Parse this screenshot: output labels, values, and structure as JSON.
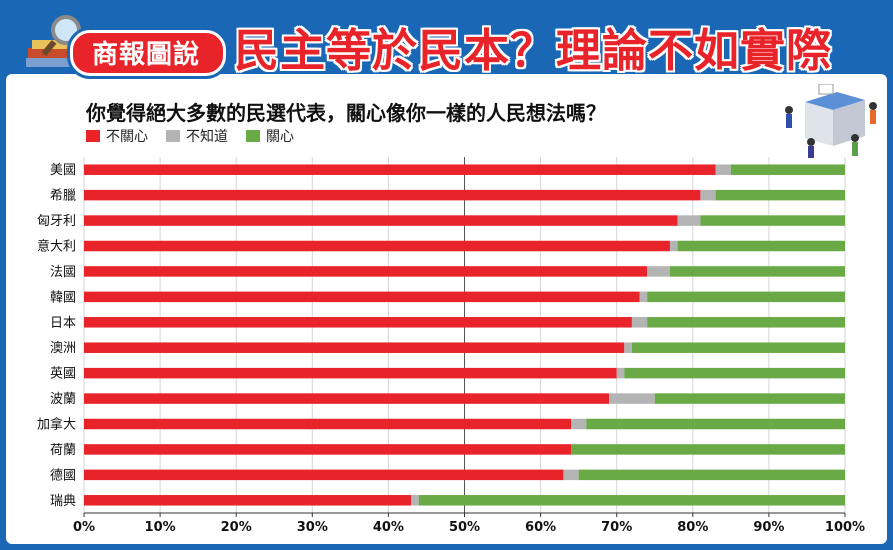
{
  "header": {
    "badge": "商報圖說",
    "headline": "民主等於民本？理論不如實際"
  },
  "chart_data": {
    "type": "bar",
    "orientation": "horizontal",
    "stacked": true,
    "title": "你覺得絕大多數的民選代表，關心像你一樣的人民想法嗎？",
    "categories": [
      "美國",
      "希臘",
      "匈牙利",
      "意大利",
      "法國",
      "韓國",
      "日本",
      "澳洲",
      "英國",
      "波蘭",
      "加拿大",
      "荷蘭",
      "德國",
      "瑞典"
    ],
    "series": [
      {
        "name": "不關心",
        "color": "#e9232a",
        "values": [
          83,
          81,
          78,
          77,
          74,
          73,
          72,
          71,
          70,
          69,
          64,
          64,
          63,
          43
        ]
      },
      {
        "name": "不知道",
        "color": "#b4b4b4",
        "values": [
          2,
          2,
          3,
          1,
          3,
          1,
          2,
          1,
          1,
          6,
          2,
          0,
          2,
          1
        ]
      },
      {
        "name": "關心",
        "color": "#6aaa46",
        "values": [
          15,
          17,
          19,
          22,
          23,
          26,
          26,
          28,
          29,
          25,
          34,
          36,
          35,
          56
        ]
      }
    ],
    "x_ticks": [
      "0%",
      "10%",
      "20%",
      "30%",
      "40%",
      "50%",
      "60%",
      "70%",
      "80%",
      "90%",
      "100%"
    ],
    "xlim": [
      0,
      100
    ],
    "reference_line": 50,
    "legend_position": "top-left"
  }
}
